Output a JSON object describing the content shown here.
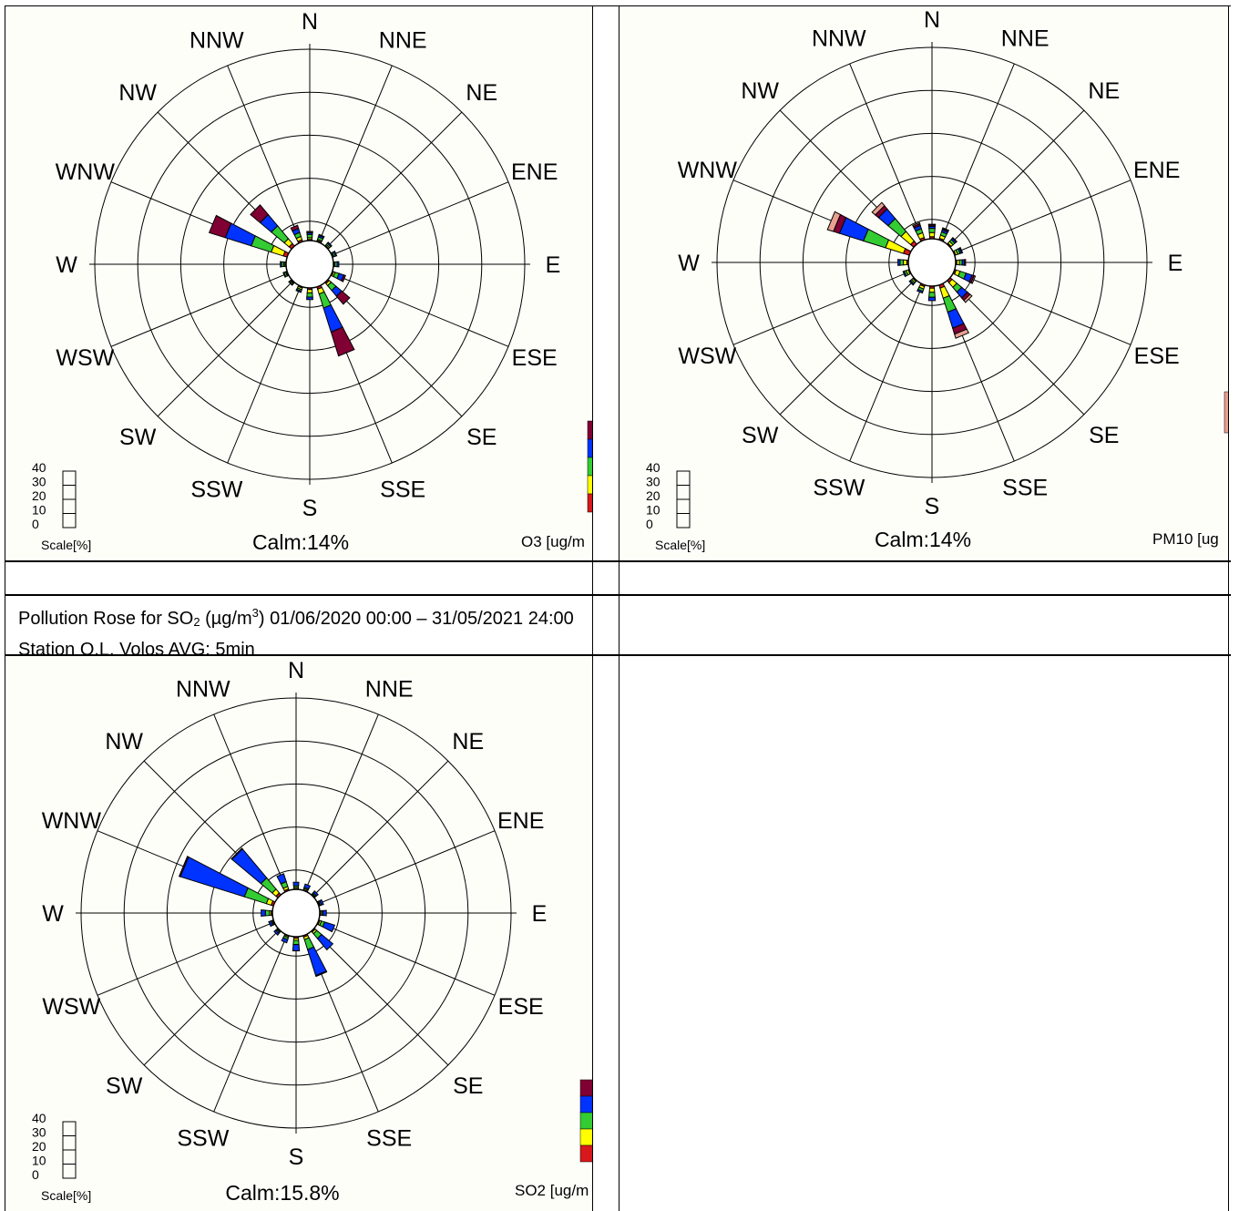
{
  "caption": {
    "prefix": "Pollution Rose for SO",
    "sub": "2",
    "mid": "  (µg/m",
    "sup": "3",
    "suffix": ") 01/06/2020 00:00 – 31/05/2021 24:00 Station O.L. Volos AVG: 5min"
  },
  "directions": [
    "N",
    "NNE",
    "NE",
    "ENE",
    "E",
    "ESE",
    "SE",
    "SSE",
    "S",
    "SSW",
    "SW",
    "WSW",
    "W",
    "WNW",
    "NW",
    "NNW"
  ],
  "scale": {
    "label": "Scale[%]",
    "ticks": [
      "40",
      "30",
      "20",
      "10",
      "0"
    ]
  },
  "bin_colors": [
    "#d7191c",
    "#ffff00",
    "#33cc33",
    "#0033ff",
    "#800033",
    "#e8a090"
  ],
  "chart_data": [
    {
      "type": "pollution-rose",
      "pollutant": "O3 [ug/m",
      "calm": "Calm:14%",
      "rings_percent": [
        10,
        20,
        30,
        40,
        50
      ],
      "legend_colors": [
        "#d7191c",
        "#ffff00",
        "#33cc33",
        "#0033ff",
        "#800033"
      ],
      "directions": [
        "N",
        "NNE",
        "NE",
        "ENE",
        "E",
        "ESE",
        "SE",
        "SSE",
        "S",
        "SSW",
        "SW",
        "WSW",
        "W",
        "WNW",
        "NW",
        "NNW"
      ],
      "series_percent": [
        [
          0.3,
          0.4,
          0.8,
          0.4,
          0.3
        ],
        [
          0.3,
          0.3,
          0.6,
          0.4,
          0.2
        ],
        [
          0.2,
          0.3,
          0.4,
          0.3,
          0
        ],
        [
          0.2,
          0.2,
          0.4,
          0.3,
          0
        ],
        [
          0.2,
          0.2,
          0.5,
          0.4,
          0
        ],
        [
          0.3,
          0.4,
          1.0,
          1.2,
          0.4
        ],
        [
          0.4,
          0.6,
          1.5,
          1.8,
          2.5
        ],
        [
          0.6,
          1.2,
          3.5,
          6.0,
          6.0
        ],
        [
          0.4,
          0.8,
          1.0,
          0.6,
          0
        ],
        [
          0.3,
          0.4,
          0.4,
          0.3,
          0
        ],
        [
          0.2,
          0.2,
          0.3,
          0.2,
          0
        ],
        [
          0.2,
          0.2,
          0.4,
          0.2,
          0
        ],
        [
          0.3,
          0.3,
          0.5,
          0.3,
          0
        ],
        [
          1.0,
          3.0,
          5.0,
          6.5,
          4.0
        ],
        [
          0.8,
          1.5,
          4.0,
          3.5,
          3.0
        ],
        [
          0.5,
          0.8,
          1.0,
          1.0,
          0.8
        ]
      ]
    },
    {
      "type": "pollution-rose",
      "pollutant": "PM10 [ug",
      "calm": "Calm:14%",
      "rings_percent": [
        10,
        20,
        30,
        40,
        50
      ],
      "legend_colors": [
        "#e8a090"
      ],
      "directions": [
        "N",
        "NNE",
        "NE",
        "ENE",
        "E",
        "ESE",
        "SE",
        "SSE",
        "S",
        "SSW",
        "SW",
        "WSW",
        "W",
        "WNW",
        "NW",
        "NNW"
      ],
      "series_percent": [
        [
          0.5,
          1.0,
          1.0,
          0.5,
          0.3,
          0.2
        ],
        [
          0.4,
          0.8,
          0.8,
          0.5,
          0.3,
          0.2
        ],
        [
          0.3,
          0.6,
          0.6,
          0.4,
          0.2,
          0
        ],
        [
          0.3,
          0.5,
          0.6,
          0.4,
          0.2,
          0
        ],
        [
          0.3,
          0.6,
          0.7,
          0.5,
          0.3,
          0
        ],
        [
          0.4,
          1.0,
          1.5,
          1.5,
          0.5,
          0.3
        ],
        [
          0.6,
          1.5,
          1.5,
          1.8,
          0.8,
          0.6
        ],
        [
          0.8,
          2.5,
          3.5,
          4.0,
          1.5,
          1.0
        ],
        [
          0.5,
          1.0,
          1.2,
          0.8,
          0,
          0
        ],
        [
          0.4,
          0.6,
          0.6,
          0.4,
          0,
          0
        ],
        [
          0.3,
          0.4,
          0.4,
          0.3,
          0,
          0
        ],
        [
          0.3,
          0.5,
          0.5,
          0.3,
          0,
          0
        ],
        [
          0.4,
          0.8,
          0.8,
          0.5,
          0,
          0
        ],
        [
          1.5,
          4.5,
          5.5,
          6.0,
          1.5,
          1.5
        ],
        [
          1.0,
          3.0,
          4.0,
          3.0,
          1.0,
          1.0
        ],
        [
          0.6,
          1.2,
          1.0,
          0.8,
          0.4,
          0.3
        ]
      ]
    },
    {
      "type": "pollution-rose",
      "pollutant": "SO2 [ug/m",
      "calm": "Calm:15.8%",
      "rings_percent": [
        10,
        20,
        30,
        40,
        50
      ],
      "legend_colors": [
        "#d7191c",
        "#ffff00",
        "#33cc33",
        "#0033ff",
        "#800033"
      ],
      "directions": [
        "N",
        "NNE",
        "NE",
        "ENE",
        "E",
        "ESE",
        "SE",
        "SSE",
        "S",
        "SSW",
        "SW",
        "WSW",
        "W",
        "WNW",
        "NW",
        "NNW"
      ],
      "series_percent": [
        [
          0.2,
          0.3,
          0.4,
          0.8,
          0
        ],
        [
          0.2,
          0.3,
          0.3,
          0.8,
          0
        ],
        [
          0.2,
          0.2,
          0.3,
          0.5,
          0
        ],
        [
          0.2,
          0.2,
          0.3,
          0.5,
          0
        ],
        [
          0.2,
          0.3,
          0.3,
          0.8,
          0
        ],
        [
          0.3,
          0.4,
          0.8,
          2.5,
          0
        ],
        [
          0.3,
          0.5,
          1.5,
          3.5,
          0
        ],
        [
          0.4,
          0.6,
          2.5,
          6.5,
          0.2
        ],
        [
          0.4,
          0.5,
          1.0,
          1.5,
          0
        ],
        [
          0.2,
          0.3,
          0.5,
          0.8,
          0
        ],
        [
          0.2,
          0.2,
          0.3,
          0.5,
          0
        ],
        [
          0.2,
          0.2,
          0.3,
          0.5,
          0
        ],
        [
          0.3,
          0.4,
          1.0,
          1.0,
          0
        ],
        [
          0.6,
          1.2,
          5.5,
          16.0,
          0.3
        ],
        [
          0.6,
          1.2,
          3.5,
          9.0,
          0.2
        ],
        [
          0.4,
          0.6,
          1.2,
          2.0,
          0
        ]
      ]
    }
  ]
}
